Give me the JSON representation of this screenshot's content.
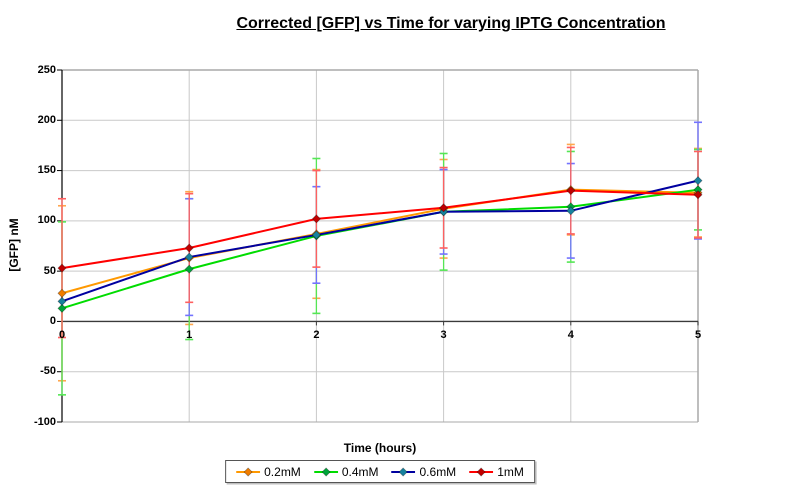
{
  "title": "Corrected [GFP] vs Time for varying IPTG Concentration",
  "chart_data": {
    "type": "line",
    "title": "Corrected [GFP] vs Time for varying IPTG Concentration",
    "xlabel": "Time (hours)",
    "ylabel": "[GFP] nM",
    "x": [
      0,
      1,
      2,
      3,
      4,
      5
    ],
    "x_ticks": [
      0,
      1,
      2,
      3,
      4,
      5
    ],
    "y_ticks": [
      250,
      200,
      150,
      100,
      50,
      0,
      -50,
      -100
    ],
    "xlim": [
      0,
      5
    ],
    "ylim": [
      -100,
      250
    ],
    "grid": true,
    "error_bars": true,
    "legend_position": "bottom",
    "series": [
      {
        "name": "0.2mM",
        "line_color": "#FF9900",
        "marker_color": "#F07D00",
        "error_color": "#FFA64D",
        "values": [
          28,
          63,
          87,
          112,
          131,
          128
        ],
        "errors": [
          87,
          66,
          64,
          49,
          45,
          44
        ]
      },
      {
        "name": "0.4mM",
        "line_color": "#00DC00",
        "marker_color": "#00A33A",
        "error_color": "#55E655",
        "values": [
          13,
          52,
          85,
          109,
          114,
          131
        ],
        "errors": [
          86,
          70,
          77,
          58,
          55,
          40
        ]
      },
      {
        "name": "0.6mM",
        "line_color": "#0000A0",
        "marker_color": "#17829E",
        "error_color": "#7373FF",
        "values": [
          20,
          64,
          86,
          109,
          110,
          140
        ],
        "errors": [
          0,
          58,
          48,
          42,
          47,
          58
        ]
      },
      {
        "name": "1mM",
        "line_color": "#FF0000",
        "marker_color": "#C00000",
        "error_color": "#FF6060",
        "values": [
          53,
          73,
          102,
          113,
          130,
          126
        ],
        "errors": [
          69,
          54,
          48,
          40,
          43,
          43
        ]
      }
    ],
    "axis_colors": {
      "gridline": "#C9C9C9",
      "zero_line": "#3A3A3A",
      "border": "#A9A9A9",
      "axis": "#000000"
    }
  }
}
